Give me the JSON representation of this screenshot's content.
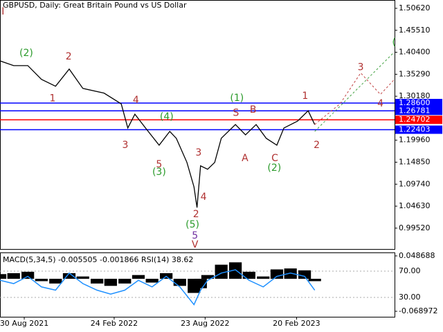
{
  "chart_data": [
    {
      "type": "line",
      "title": "GBPUSD, Daily:  Great Britain Pound vs US Dollar",
      "xlim": [
        -48,
        733
      ],
      "ylim": [
        0.9467,
        1.5255
      ],
      "xticks": [
        {
          "value": 0,
          "label": "30 Aug 2021"
        },
        {
          "value": 178,
          "label": "24 Feb 2022"
        },
        {
          "value": 358,
          "label": "23 Aug 2022"
        },
        {
          "value": 539,
          "label": "20 Feb 2023"
        }
      ],
      "yticks": [
        {
          "value": 1.5062,
          "label": "1.50620"
        },
        {
          "value": 1.4551,
          "label": "1.45510"
        },
        {
          "value": 1.404,
          "label": "1.40400"
        },
        {
          "value": 1.3529,
          "label": "1.35290"
        },
        {
          "value": 1.3018,
          "label": "1.30180"
        },
        {
          "value": 1.1996,
          "label": "1.19960"
        },
        {
          "value": 1.1485,
          "label": "1.14850"
        },
        {
          "value": 1.0974,
          "label": "1.09740"
        },
        {
          "value": 1.0463,
          "label": "1.04630"
        },
        {
          "value": 0.9952,
          "label": "0.99520"
        }
      ],
      "series": [
        {
          "color": "#000000",
          "x": [
            -48,
            -21,
            7,
            34,
            62,
            89,
            116,
            158,
            192,
            205,
            219,
            240,
            267,
            288,
            301,
            322,
            336,
            342,
            349,
            363,
            377,
            390,
            418,
            438,
            459,
            479,
            500,
            514,
            541,
            562,
            575
          ],
          "values": [
            1.384,
            1.373,
            1.373,
            1.341,
            1.325,
            1.365,
            1.32,
            1.309,
            1.284,
            1.228,
            1.26,
            1.228,
            1.188,
            1.22,
            1.204,
            1.148,
            1.091,
            1.043,
            1.14,
            1.132,
            1.148,
            1.204,
            1.236,
            1.212,
            1.236,
            1.204,
            1.188,
            1.228,
            1.244,
            1.268,
            1.236
          ]
        },
        {
          "color": "#c04040",
          "dashed": true,
          "x": [
            575,
            625,
            666,
            705,
            732
          ],
          "values": [
            1.236,
            1.284,
            1.356,
            1.306,
            1.34
          ]
        },
        {
          "color": "#40a040",
          "dashed": true,
          "x": [
            575,
            732
          ],
          "values": [
            1.22,
            1.404
          ]
        }
      ],
      "levels": [
        {
          "value": 1.286,
          "label": "1.28600",
          "color": "#0000ff"
        },
        {
          "value": 1.26781,
          "label": "1.26781",
          "color": "#0000ff"
        },
        {
          "value": 1.24702,
          "label": "1.24702",
          "color": "#ff0000"
        },
        {
          "value": 1.22403,
          "label": "1.22403",
          "color": "#0000ff"
        }
      ],
      "annotations": [
        {
          "text": "I",
          "color": "#b03030",
          "x": -42,
          "y": 1.498
        },
        {
          "text": "(2)",
          "color": "#2a9a2a",
          "x": 4,
          "y": 1.402
        },
        {
          "text": "2",
          "color": "#b03030",
          "x": 88,
          "y": 1.394
        },
        {
          "text": "1",
          "color": "#b03030",
          "x": 56,
          "y": 1.296
        },
        {
          "text": "4",
          "color": "#b03030",
          "x": 221,
          "y": 1.292
        },
        {
          "text": "3",
          "color": "#b03030",
          "x": 200,
          "y": 1.188
        },
        {
          "text": "(4)",
          "color": "#2a9a2a",
          "x": 282,
          "y": 1.254
        },
        {
          "text": "5",
          "color": "#b03030",
          "x": 267,
          "y": 1.143
        },
        {
          "text": "(3)",
          "color": "#2a9a2a",
          "x": 267,
          "y": 1.125
        },
        {
          "text": "3",
          "color": "#b03030",
          "x": 345,
          "y": 1.17
        },
        {
          "text": "4",
          "color": "#b03030",
          "x": 355,
          "y": 1.067
        },
        {
          "text": "2",
          "color": "#b03030",
          "x": 340,
          "y": 1.027
        },
        {
          "text": "(5)",
          "color": "#2a9a2a",
          "x": 333,
          "y": 1.003
        },
        {
          "text": "5",
          "color": "#7030a0",
          "x": 338,
          "y": 0.977
        },
        {
          "text": "V",
          "color": "#b03030",
          "x": 338,
          "y": 0.956
        },
        {
          "text": "(1)",
          "color": "#2a9a2a",
          "x": 421,
          "y": 1.297
        },
        {
          "text": "S",
          "color": "#b03030",
          "x": 419,
          "y": 1.263
        },
        {
          "text": "B",
          "color": "#b03030",
          "x": 453,
          "y": 1.27
        },
        {
          "text": "A",
          "color": "#b03030",
          "x": 437,
          "y": 1.157
        },
        {
          "text": "C",
          "color": "#b03030",
          "x": 496,
          "y": 1.157
        },
        {
          "text": "(2)",
          "color": "#2a9a2a",
          "x": 495,
          "y": 1.135
        },
        {
          "text": "1",
          "color": "#b03030",
          "x": 556,
          "y": 1.302
        },
        {
          "text": "2",
          "color": "#b03030",
          "x": 579,
          "y": 1.188
        },
        {
          "text": "3",
          "color": "#b03030",
          "x": 666,
          "y": 1.369
        },
        {
          "text": "4",
          "color": "#b03030",
          "x": 705,
          "y": 1.284
        },
        {
          "text": "(",
          "color": "#2a9a2a",
          "x": 732,
          "y": 1.427
        }
      ]
    },
    {
      "type": "indicator",
      "title": "MACD(5,34,5) -0.005505 -0.001866 RSI(14) 38.62",
      "ylim": [
        0.5,
        98.4
      ],
      "yticks": [
        {
          "value": 70,
          "label": "70.00"
        },
        {
          "value": 30,
          "label": "30.00"
        }
      ],
      "y2lim": [
        -0.0807,
        0.056
      ],
      "y2ticks": [
        0.048688,
        -0.068972
      ],
      "x": [
        -48,
        -21,
        7,
        34,
        62,
        89,
        116,
        144,
        171,
        199,
        226,
        253,
        281,
        308,
        336,
        349,
        363,
        390,
        418,
        445,
        473,
        500,
        527,
        555,
        575
      ],
      "series": [
        {
          "color": "#000000",
          "axis": "y2",
          "values": [
            0.01,
            0.012,
            0.015,
            -0.005,
            -0.01,
            0.012,
            0.005,
            -0.01,
            -0.015,
            -0.01,
            0.008,
            -0.008,
            0.012,
            -0.015,
            -0.03,
            -0.02,
            0.008,
            0.03,
            0.035,
            0.015,
            0.005,
            0.02,
            0.022,
            0.018,
            -0.005
          ]
        },
        {
          "color": "#1e90ff",
          "values": [
            56,
            51,
            62,
            46,
            41,
            67,
            51,
            41,
            35,
            41,
            56,
            46,
            62,
            46,
            19,
            41,
            56,
            67,
            72,
            56,
            46,
            62,
            67,
            62,
            41
          ]
        }
      ]
    }
  ]
}
